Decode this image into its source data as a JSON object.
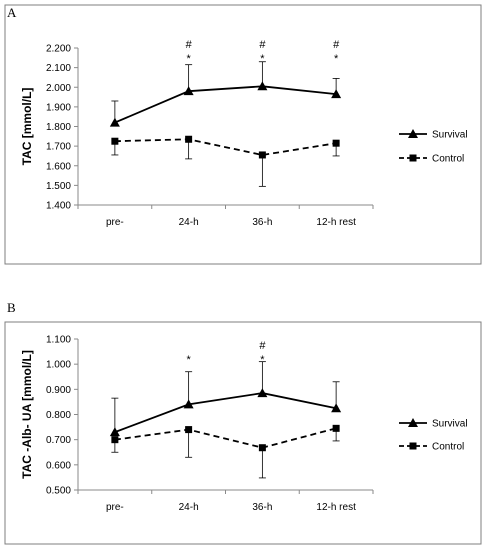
{
  "chart_data": [
    {
      "panel": "A",
      "type": "line",
      "ylabel": "TAC [mmol/L]",
      "xlabel": "",
      "categories": [
        "pre-",
        "24-h",
        "36-h",
        "12-h rest"
      ],
      "ylim": [
        1.4,
        2.2
      ],
      "yticks": [
        "1.400",
        "1.500",
        "1.600",
        "1.700",
        "1.800",
        "1.900",
        "2.000",
        "2.100",
        "2.200"
      ],
      "grid": false,
      "legend": "right",
      "series": [
        {
          "name": "Survival",
          "marker": "triangle",
          "dash": "solid",
          "values": [
            1.82,
            1.98,
            2.005,
            1.965
          ],
          "error_plus": [
            0.11,
            0.135,
            0.125,
            0.08
          ],
          "error_minus": [
            0,
            0,
            0,
            0
          ]
        },
        {
          "name": "Control",
          "marker": "square",
          "dash": "dashed",
          "values": [
            1.725,
            1.735,
            1.655,
            1.715
          ],
          "error_plus": [
            0,
            0,
            0,
            0
          ],
          "error_minus": [
            0.07,
            0.1,
            0.16,
            0.065
          ]
        }
      ],
      "annotations": [
        {
          "category": "24-h",
          "symbols": [
            "#",
            "*"
          ]
        },
        {
          "category": "36-h",
          "symbols": [
            "#",
            "*"
          ]
        },
        {
          "category": "12-h rest",
          "symbols": [
            "#",
            "*"
          ]
        }
      ]
    },
    {
      "panel": "B",
      "type": "line",
      "ylabel": "TAC -Alb- UA [mmol/L]",
      "xlabel": "",
      "categories": [
        "pre-",
        "24-h",
        "36-h",
        "12-h rest"
      ],
      "ylim": [
        0.5,
        1.1
      ],
      "yticks": [
        "0.500",
        "0.600",
        "0.700",
        "0.800",
        "0.900",
        "1.000",
        "1.100"
      ],
      "grid": false,
      "legend": "right",
      "series": [
        {
          "name": "Survival",
          "marker": "triangle",
          "dash": "solid",
          "values": [
            0.73,
            0.84,
            0.885,
            0.825
          ],
          "error_plus": [
            0.135,
            0.13,
            0.125,
            0.105
          ],
          "error_minus": [
            0,
            0,
            0,
            0
          ]
        },
        {
          "name": "Control",
          "marker": "square",
          "dash": "dashed",
          "values": [
            0.7,
            0.74,
            0.668,
            0.745
          ],
          "error_plus": [
            0,
            0,
            0,
            0
          ],
          "error_minus": [
            0.05,
            0.11,
            0.12,
            0.05
          ]
        }
      ],
      "annotations": [
        {
          "category": "24-h",
          "symbols": [
            "*"
          ]
        },
        {
          "category": "36-h",
          "symbols": [
            "#",
            "*"
          ]
        }
      ]
    }
  ]
}
